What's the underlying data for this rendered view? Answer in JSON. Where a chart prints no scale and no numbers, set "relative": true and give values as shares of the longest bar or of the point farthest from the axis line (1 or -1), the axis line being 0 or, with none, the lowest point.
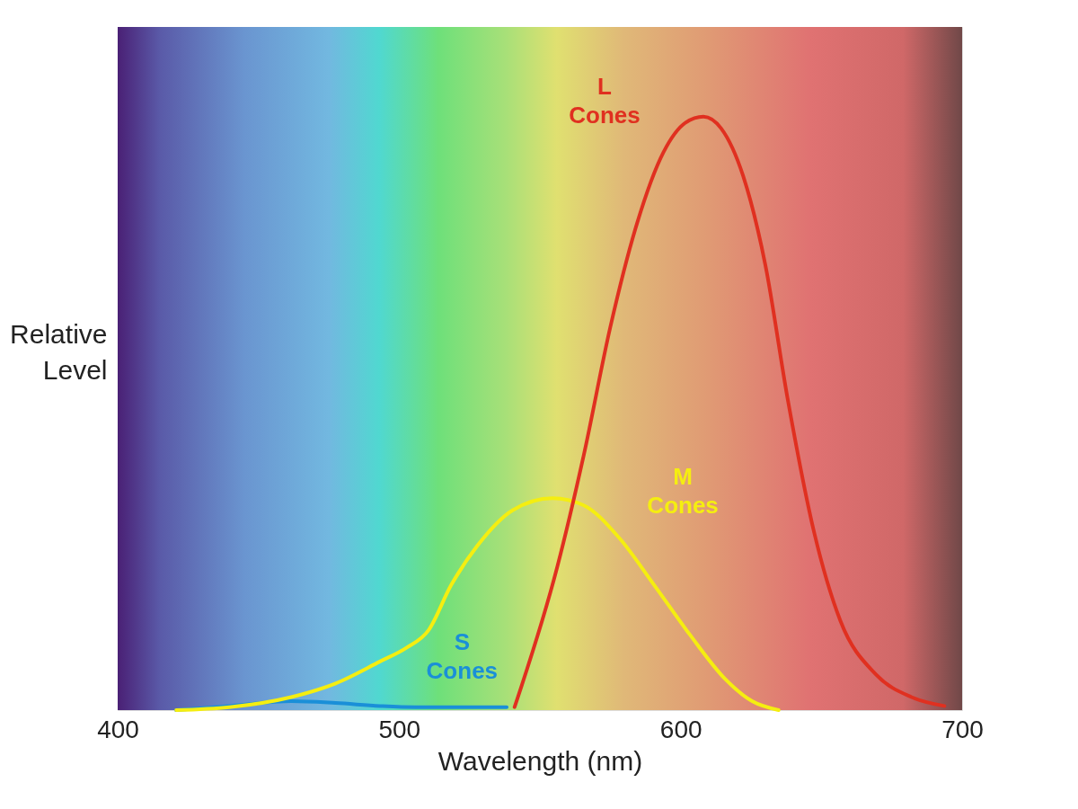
{
  "chart_data": {
    "type": "line",
    "xlabel": "Wavelength (nm)",
    "ylabel": "Relative\nLevel",
    "relative": true,
    "xlim": [
      400,
      700
    ],
    "xticks": [
      400,
      500,
      600,
      700
    ],
    "grid": false,
    "line_style": "solid",
    "marker": "none",
    "series": [
      {
        "name": "S\nCones",
        "color": "#1a8fd8",
        "x": [
          420.8,
          439.7,
          461.7,
          477.4,
          493.2,
          505.8,
          538.2
        ],
        "values": [
          0,
          0.007,
          0.015,
          0.012,
          0.007,
          0.005,
          0.005
        ]
      },
      {
        "name": "M\nCones",
        "color": "#f5ee10",
        "x": [
          420.8,
          439.7,
          461.7,
          477.4,
          493.2,
          502.6,
          510.5,
          518.4,
          527.8,
          540.4,
          554.5,
          565.6,
          578.2,
          590.7,
          603.3,
          615.9,
          625.4,
          634.8
        ],
        "values": [
          0,
          0.005,
          0.022,
          0.045,
          0.082,
          0.105,
          0.135,
          0.21,
          0.277,
          0.337,
          0.357,
          0.345,
          0.29,
          0.21,
          0.127,
          0.052,
          0.015,
          0
        ]
      },
      {
        "name": "L\nCones",
        "color": "#e03020",
        "x": [
          541.0,
          556.1,
          565.6,
          575.0,
          584.5,
          593.9,
          601.8,
          608.1,
          614.4,
          622.2,
          630.1,
          638.0,
          647.4,
          656.8,
          669.4,
          682.0,
          693.7
        ],
        "values": [
          0.005,
          0.24,
          0.43,
          0.645,
          0.82,
          0.94,
          0.99,
          1,
          0.98,
          0.9,
          0.75,
          0.525,
          0.3,
          0.15,
          0.06,
          0.022,
          0.007
        ]
      }
    ]
  }
}
